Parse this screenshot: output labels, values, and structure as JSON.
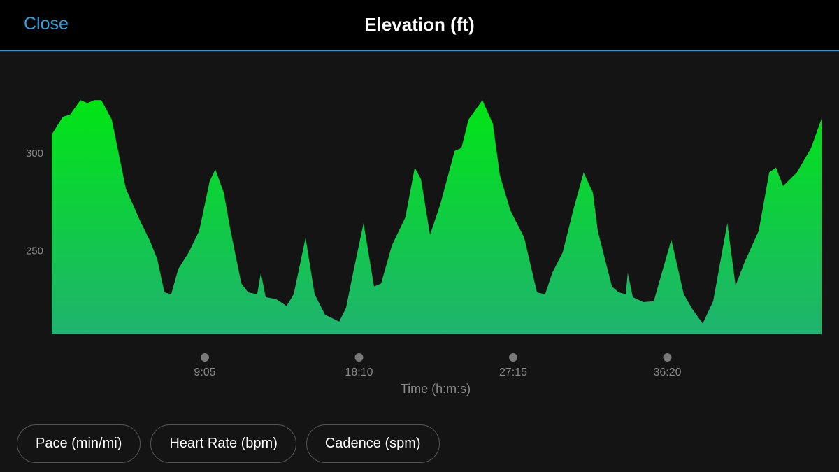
{
  "header": {
    "close": "Close",
    "title": "Elevation (ft)"
  },
  "chart_data": {
    "type": "area",
    "x": [
      4,
      43,
      68,
      105,
      130,
      154,
      179,
      216,
      266,
      315,
      352,
      377,
      402,
      426,
      451,
      488,
      525,
      562,
      582,
      612,
      636,
      674,
      698,
      730,
      743,
      760,
      797,
      834,
      859,
      901,
      933,
      970,
      1020,
      1044,
      1069,
      1106,
      1143,
      1168,
      1206,
      1254,
      1287,
      1309,
      1341,
      1378,
      1428,
      1452,
      1477,
      1526,
      1563,
      1588,
      1625,
      1674,
      1719,
      1748,
      1773,
      1810,
      1847,
      1884,
      1917,
      1934,
      1984,
      2008,
      2033,
      2040,
      2058,
      2095,
      2132,
      2194,
      2238,
      2268,
      2305,
      2342,
      2392,
      2421,
      2453,
      2503,
      2540,
      2564,
      2589,
      2638,
      2688,
      2725
    ],
    "values": [
      310,
      319,
      320,
      327.5,
      326,
      327.5,
      327.5,
      317.5,
      282,
      266,
      255,
      246,
      229,
      228,
      241,
      249.5,
      260.5,
      286,
      292,
      280,
      260.5,
      233.5,
      229,
      228,
      239,
      226.5,
      225.5,
      222,
      228,
      257,
      228,
      217.5,
      214,
      221,
      239,
      264.5,
      232,
      233.5,
      253,
      267.5,
      293,
      287,
      258.5,
      274.5,
      301.5,
      303,
      317.5,
      327.5,
      315.5,
      289,
      271,
      257,
      229,
      228,
      239,
      249.5,
      271,
      290.5,
      280,
      260.5,
      232,
      229,
      228,
      239,
      226.5,
      224,
      224.5,
      256,
      228,
      220.5,
      213,
      224.5,
      264.5,
      232.5,
      244.5,
      260.5,
      290.5,
      293,
      283.5,
      290.5,
      303,
      318
    ],
    "gradient": [
      "#00e514",
      "#1fb370"
    ],
    "xlabel": "Time (h:m:s)",
    "xlim": [
      0,
      2725
    ],
    "xticks": [
      {
        "value": 545,
        "label": "9:05"
      },
      {
        "value": 1090,
        "label": "18:10"
      },
      {
        "value": 1635,
        "label": "27:15"
      },
      {
        "value": 2180,
        "label": "36:20"
      }
    ],
    "ylim": [
      207.5,
      343
    ],
    "yticks": [
      250,
      300
    ]
  },
  "buttons": [
    "Pace (min/mi)",
    "Heart Rate (bpm)",
    "Cadence (spm)"
  ]
}
